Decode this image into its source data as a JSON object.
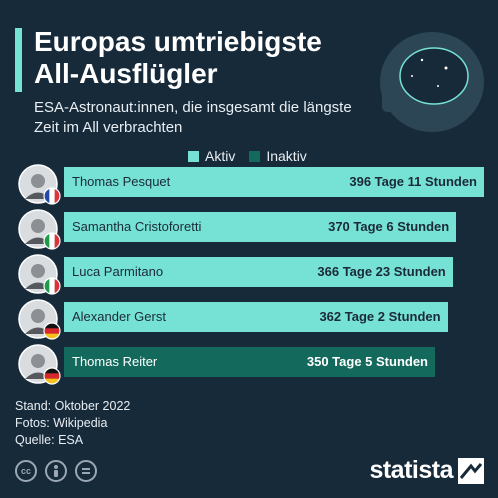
{
  "header": {
    "title": "Europas umtriebigste All-Ausflügler",
    "subtitle": "ESA-Astronaut:innen, die insgesamt die längste Zeit im All verbrachten"
  },
  "legend": {
    "active_label": "Aktiv",
    "inactive_label": "Inaktiv"
  },
  "colors": {
    "background": "#172a3a",
    "active": "#76e1d5",
    "inactive": "#136a5c"
  },
  "chart_data": {
    "type": "bar",
    "orientation": "horizontal",
    "categories": [
      "Thomas Pesquet",
      "Samantha Cristoforetti",
      "Luca Parmitano",
      "Alexander Gerst",
      "Thomas Reiter"
    ],
    "value_labels": [
      "396 Tage 11 Stunden",
      "370 Tage 6 Stunden",
      "366 Tage 23 Stunden",
      "362 Tage 2 Stunden",
      "350 Tage 5 Stunden"
    ],
    "values": [
      396.46,
      370.25,
      366.96,
      362.08,
      350.21
    ],
    "status": [
      "Aktiv",
      "Aktiv",
      "Aktiv",
      "Aktiv",
      "Inaktiv"
    ],
    "flags": [
      "fr-flag-icon",
      "it-flag-icon",
      "it-flag-icon",
      "de-flag-icon",
      "de-flag-icon"
    ],
    "legend_position": "top",
    "grid": false
  },
  "footer": {
    "stand": "Stand: Oktober 2022",
    "fotos": "Fotos: Wikipedia",
    "quelle": "Quelle: ESA"
  },
  "brand": {
    "name": "statista"
  },
  "icons": [
    "cc-icon",
    "person-icon",
    "equals-icon",
    "helmet-icon",
    "statista-logo-icon"
  ]
}
